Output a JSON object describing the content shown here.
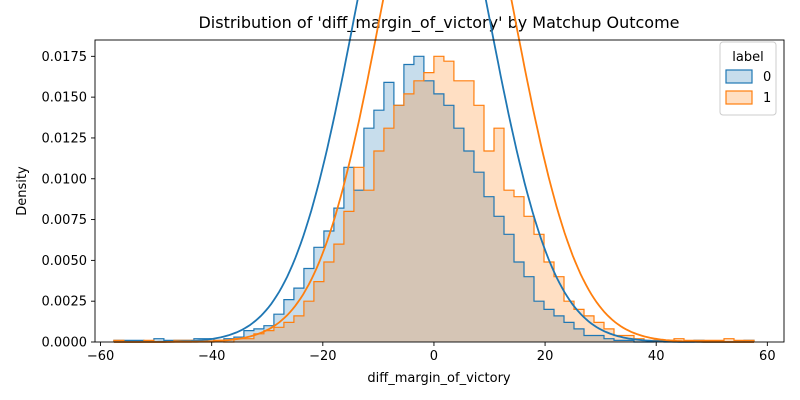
{
  "chart_data": {
    "type": "histogram",
    "title": "Distribution of 'diff_margin_of_victory' by Matchup Outcome",
    "xlabel": "diff_margin_of_victory",
    "ylabel": "Density",
    "xlim": [
      -61,
      63
    ],
    "ylim": [
      0,
      0.0185
    ],
    "xticks": [
      -60,
      -40,
      -20,
      0,
      20,
      40,
      60
    ],
    "yticks": [
      0,
      0.0025,
      0.005,
      0.0075,
      0.01,
      0.0125,
      0.015,
      0.0175
    ],
    "bin_width": 1.8,
    "bin_start": -57.6,
    "legend": {
      "title": "label",
      "placement": "top-right"
    },
    "grid": false,
    "series": [
      {
        "name": "0",
        "color": "#1f77b4",
        "fill": "rgba(31,119,180,0.25)",
        "kde_mean": -2.2,
        "kde_sd": 11.7,
        "density": [
          0.0001,
          0.0001,
          0.0001,
          0,
          0.0002,
          0.0001,
          0.0001,
          0.0001,
          0.0002,
          0.0002,
          0.0001,
          0.0002,
          0.0003,
          0.0007,
          0.0008,
          0.001,
          0.0017,
          0.0026,
          0.0033,
          0.0045,
          0.0058,
          0.0068,
          0.0082,
          0.0107,
          0.0093,
          0.0131,
          0.0142,
          0.0159,
          0.0145,
          0.017,
          0.0175,
          0.016,
          0.0152,
          0.0145,
          0.0131,
          0.0117,
          0.0104,
          0.0089,
          0.0077,
          0.0066,
          0.0049,
          0.004,
          0.0025,
          0.002,
          0.0016,
          0.0012,
          0.0008,
          0.0004,
          0.0004,
          0.0002,
          0.0001,
          0.0001,
          0,
          0,
          0.0001,
          0,
          0,
          0,
          0.0001,
          0,
          0,
          0,
          0,
          0.0001
        ]
      },
      {
        "name": "1",
        "color": "#ff7f0e",
        "fill": "rgba(255,127,14,0.25)",
        "kde_mean": 2.4,
        "kde_sd": 11.7,
        "density": [
          0.0001,
          0,
          0,
          0.0001,
          0,
          0,
          0.0001,
          0.0001,
          0,
          0,
          0.0001,
          0,
          0.0002,
          0.0002,
          0.0005,
          0.0007,
          0.0009,
          0.0012,
          0.0016,
          0.0025,
          0.0037,
          0.0049,
          0.006,
          0.008,
          0.0107,
          0.0093,
          0.0117,
          0.0131,
          0.0145,
          0.0152,
          0.016,
          0.0165,
          0.0175,
          0.0172,
          0.016,
          0.016,
          0.0145,
          0.0117,
          0.0131,
          0.0093,
          0.0089,
          0.0077,
          0.0066,
          0.0049,
          0.004,
          0.0025,
          0.002,
          0.0016,
          0.0012,
          0.0008,
          0.0004,
          0.0004,
          0.0002,
          0.0001,
          0.0001,
          0.0001,
          0.0002,
          0.0001,
          0.0001,
          0.0001,
          0.0001,
          0.0002,
          0.0001,
          0.0001
        ]
      }
    ]
  }
}
